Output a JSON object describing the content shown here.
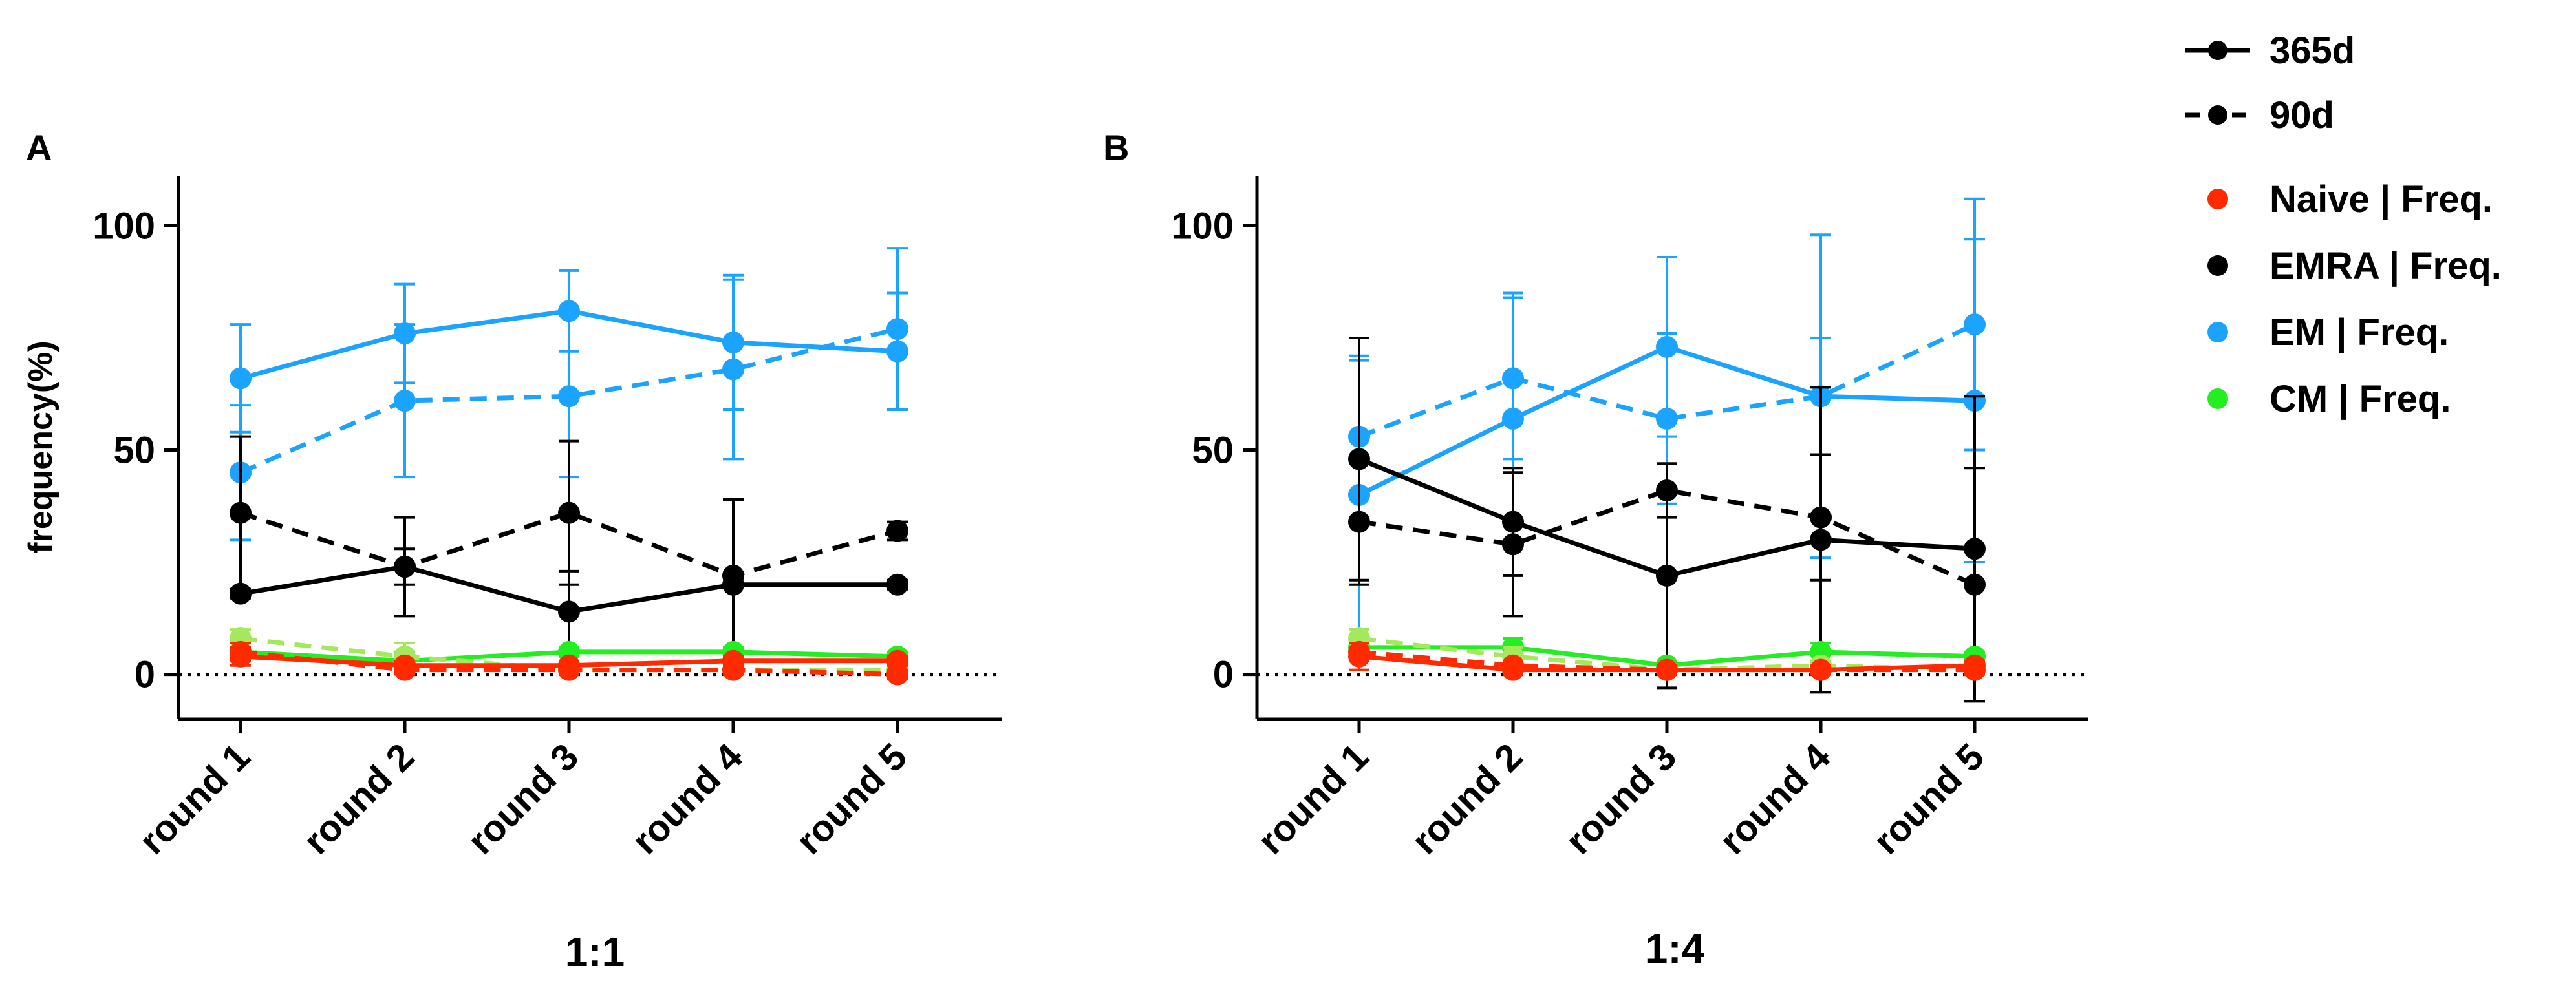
{
  "legend": {
    "line_styles": [
      {
        "label": "365d",
        "dash": false
      },
      {
        "label": "90d",
        "dash": true
      }
    ],
    "populations": [
      {
        "label": "Naive | Freq.",
        "color": "#ff2a00"
      },
      {
        "label": "EMRA | Freq.",
        "color": "#000000"
      },
      {
        "label": "EM | Freq.",
        "color": "#1aa3ff"
      },
      {
        "label": "CM | Freq.",
        "color": "#22ee22"
      }
    ]
  },
  "chart_data": [
    {
      "type": "line",
      "panel": "A",
      "title": "",
      "xlabel": "1:1",
      "ylabel": "frequency(%)",
      "ylim": [
        -10,
        110
      ],
      "yticks": [
        0,
        50,
        100
      ],
      "reference_line": 0,
      "categories": [
        "round 1",
        "round 2",
        "round 3",
        "round 4",
        "round 5"
      ],
      "series": [
        {
          "group": "EM | Freq.",
          "style": "365d",
          "color": "#1aa3ff",
          "values": [
            66,
            76,
            81,
            74,
            72
          ],
          "error": [
            12,
            11,
            9,
            15,
            13
          ]
        },
        {
          "group": "EM | Freq.",
          "style": "90d",
          "color": "#1aa3ff",
          "values": [
            45,
            61,
            62,
            68,
            77
          ],
          "error": [
            15,
            17,
            18,
            20,
            18
          ]
        },
        {
          "group": "EMRA | Freq.",
          "style": "365d",
          "color": "#000000",
          "values": [
            18,
            24,
            14,
            20,
            20
          ],
          "error": [
            1,
            4,
            9,
            19,
            1
          ]
        },
        {
          "group": "EMRA | Freq.",
          "style": "90d",
          "color": "#000000",
          "values": [
            36,
            24,
            36,
            22,
            32
          ],
          "error": [
            17,
            11,
            16,
            17,
            2
          ]
        },
        {
          "group": "CM | Freq.",
          "style": "365d",
          "color": "#22ee22",
          "values": [
            5,
            3,
            5,
            5,
            4
          ],
          "error": [
            2,
            2,
            1,
            1,
            1
          ]
        },
        {
          "group": "CM | Freq.",
          "style": "90d",
          "color": "#a4e85c",
          "values": [
            8,
            4,
            1,
            1,
            1
          ],
          "error": [
            2,
            3,
            1,
            1,
            1
          ]
        },
        {
          "group": "Naive | Freq.",
          "style": "365d",
          "color": "#ff2a00",
          "values": [
            4,
            2,
            2,
            3,
            3
          ],
          "error": [
            2,
            1,
            1,
            1,
            1
          ]
        },
        {
          "group": "Naive | Freq.",
          "style": "90d",
          "color": "#ff2a00",
          "values": [
            5,
            1,
            1,
            1,
            0
          ],
          "error": [
            2,
            1,
            1,
            1,
            1
          ]
        }
      ]
    },
    {
      "type": "line",
      "panel": "B",
      "title": "",
      "xlabel": "1:4",
      "ylabel": "",
      "ylim": [
        -10,
        110
      ],
      "yticks": [
        0,
        50,
        100
      ],
      "reference_line": 0,
      "categories": [
        "round 1",
        "round 2",
        "round 3",
        "round 4",
        "round 5"
      ],
      "series": [
        {
          "group": "EM | Freq.",
          "style": "365d",
          "color": "#1aa3ff",
          "values": [
            40,
            57,
            73,
            62,
            61
          ],
          "error": [
            30,
            28,
            20,
            36,
            36
          ]
        },
        {
          "group": "EM | Freq.",
          "style": "90d",
          "color": "#1aa3ff",
          "values": [
            53,
            66,
            57,
            62,
            78
          ],
          "error": [
            18,
            18,
            19,
            13,
            28
          ]
        },
        {
          "group": "EMRA | Freq.",
          "style": "365d",
          "color": "#000000",
          "values": [
            48,
            34,
            22,
            30,
            28
          ],
          "error": [
            27,
            12,
            25,
            34,
            34
          ]
        },
        {
          "group": "EMRA | Freq.",
          "style": "90d",
          "color": "#000000",
          "values": [
            34,
            29,
            41,
            35,
            20
          ],
          "error": [
            14,
            16,
            6,
            14,
            26
          ]
        },
        {
          "group": "CM | Freq.",
          "style": "365d",
          "color": "#22ee22",
          "values": [
            6,
            6,
            2,
            5,
            4
          ],
          "error": [
            2,
            2,
            1,
            2,
            1
          ]
        },
        {
          "group": "CM | Freq.",
          "style": "90d",
          "color": "#a4e85c",
          "values": [
            8,
            4,
            1,
            2,
            1
          ],
          "error": [
            2,
            2,
            1,
            1,
            1
          ]
        },
        {
          "group": "Naive | Freq.",
          "style": "365d",
          "color": "#ff2a00",
          "values": [
            4,
            1,
            1,
            1,
            2
          ],
          "error": [
            3,
            1,
            1,
            1,
            1
          ]
        },
        {
          "group": "Naive | Freq.",
          "style": "90d",
          "color": "#ff2a00",
          "values": [
            5,
            2,
            1,
            1,
            1
          ],
          "error": [
            2,
            1,
            1,
            1,
            1
          ]
        }
      ]
    }
  ]
}
